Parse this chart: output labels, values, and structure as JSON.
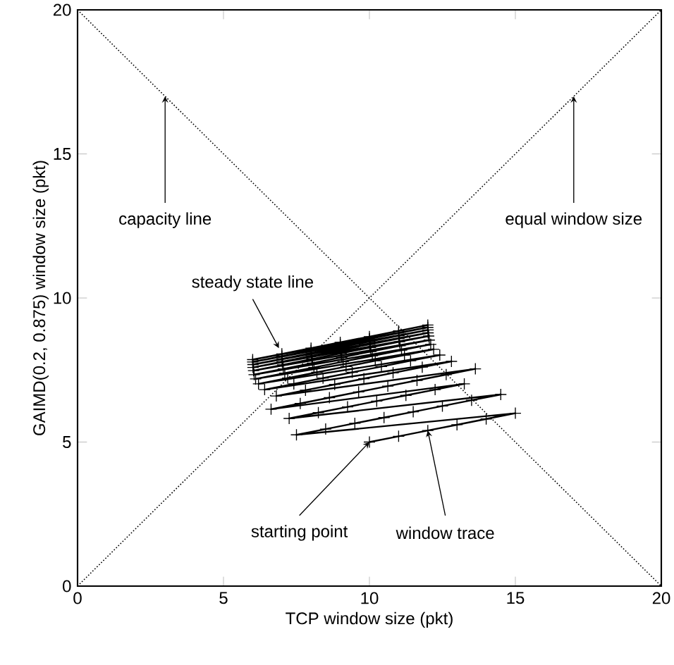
{
  "chart_data": {
    "type": "line",
    "xlabel": "TCP window size (pkt)",
    "ylabel": "GAIMD(0.2, 0.875) window size (pkt)",
    "xlim": [
      0,
      20
    ],
    "ylim": [
      0,
      20
    ],
    "xticks": [
      0,
      5,
      10,
      15,
      20
    ],
    "yticks": [
      0,
      5,
      10,
      15,
      20
    ],
    "grid": false,
    "legend": false,
    "series": [
      {
        "x": [
          0,
          20
        ],
        "values": [
          20,
          0
        ],
        "color": "#000000",
        "line_style": "dotted",
        "marker": "none"
      },
      {
        "x": [
          0,
          20
        ],
        "values": [
          0,
          20
        ],
        "color": "#000000",
        "line_style": "dotted",
        "marker": "none"
      },
      {
        "color": "#000000",
        "line_style": "solid",
        "marker": "cross",
        "x": [
          10,
          11,
          12,
          13,
          14,
          15,
          7.5,
          8.5,
          9.5,
          10.5,
          11.5,
          12.5,
          13.5,
          14.5,
          7.25,
          8.25,
          9.25,
          10.25,
          11.25,
          12.25,
          13.25,
          6.63,
          7.63,
          8.63,
          9.63,
          10.63,
          11.63,
          12.63,
          13.63,
          6.81,
          7.81,
          8.81,
          9.81,
          10.81,
          11.81,
          12.81,
          6.41,
          7.41,
          8.41,
          9.41,
          10.41,
          11.41,
          12.41,
          6.2,
          7.2,
          8.2,
          9.2,
          10.2,
          11.2,
          12.2,
          6.1,
          7.1,
          8.1,
          9.1,
          10.1,
          11.1,
          12.1,
          6.05,
          7.05,
          8.05,
          9.05,
          10.05,
          11.05,
          12.05,
          6.03,
          7.03,
          8.03,
          9.03,
          10.03,
          11.03,
          12.03,
          6.01,
          7.01,
          8.01,
          9.01,
          10.01,
          11.01,
          12.01,
          6.01,
          7.01,
          8.01,
          9.01,
          10.01,
          11.01,
          12.01,
          6,
          7,
          8,
          9,
          10,
          11,
          12,
          6,
          7,
          8,
          9,
          10,
          11,
          12
        ],
        "values": [
          5,
          5.2,
          5.4,
          5.6,
          5.8,
          6,
          5.25,
          5.45,
          5.65,
          5.85,
          6.05,
          6.25,
          6.45,
          6.65,
          5.82,
          6.02,
          6.22,
          6.42,
          6.62,
          6.82,
          7.02,
          6.14,
          6.34,
          6.54,
          6.74,
          6.94,
          7.14,
          7.34,
          7.54,
          6.6,
          6.8,
          7,
          7.2,
          7.4,
          7.6,
          7.8,
          6.82,
          7.02,
          7.22,
          7.42,
          7.62,
          7.82,
          8.02,
          7.02,
          7.22,
          7.42,
          7.62,
          7.82,
          8.02,
          8.22,
          7.19,
          7.39,
          7.59,
          7.79,
          7.99,
          8.19,
          8.39,
          7.34,
          7.54,
          7.74,
          7.94,
          8.14,
          8.34,
          8.54,
          7.48,
          7.68,
          7.88,
          8.08,
          8.28,
          8.48,
          8.68,
          7.59,
          7.79,
          7.99,
          8.19,
          8.39,
          8.59,
          8.79,
          7.69,
          7.89,
          8.09,
          8.29,
          8.49,
          8.69,
          8.89,
          7.78,
          7.98,
          8.18,
          8.38,
          8.58,
          8.78,
          8.98,
          7.86,
          8.06,
          8.26,
          8.46,
          8.66,
          8.86,
          9.06
        ]
      }
    ],
    "annotations": [
      {
        "text": "capacity line",
        "x": 3,
        "y": 17
      },
      {
        "text": "equal window size",
        "x": 17,
        "y": 17
      },
      {
        "text": "steady state line",
        "x": 6.9,
        "y": 8.26
      },
      {
        "text": "starting point",
        "x": 10,
        "y": 5
      },
      {
        "text": "window trace",
        "x": 12,
        "y": 5.4
      }
    ]
  }
}
